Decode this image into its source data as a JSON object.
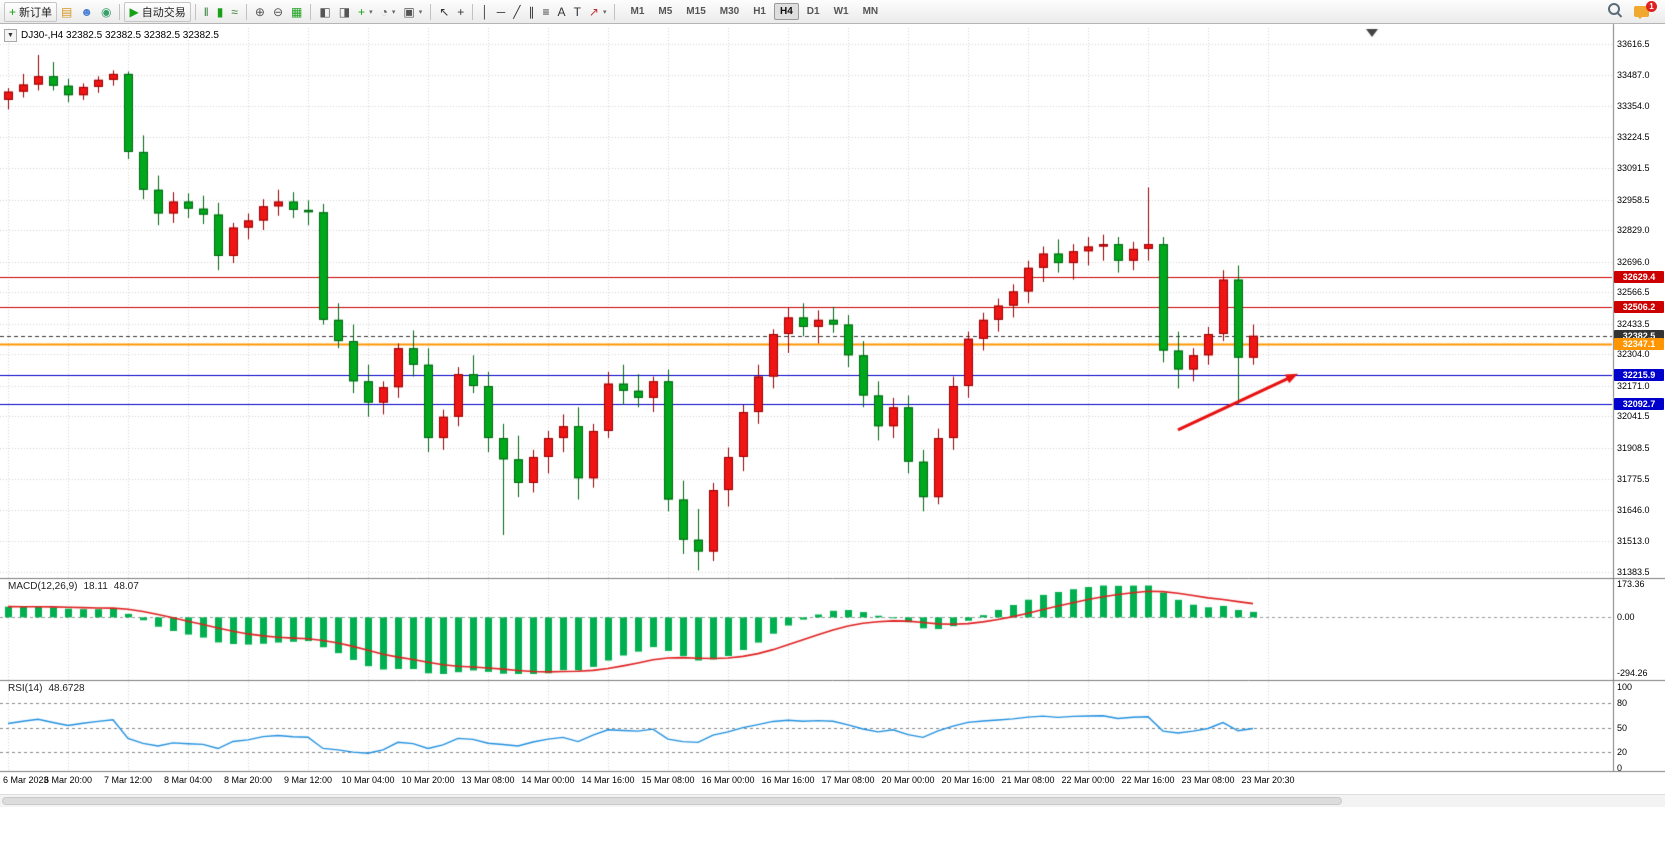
{
  "ui": {
    "menu_toggle_glyph": "▼"
  },
  "toolbar": {
    "notification_count": "1",
    "timeframes": [
      "M1",
      "M5",
      "M15",
      "M30",
      "H1",
      "H4",
      "D1",
      "W1",
      "MN"
    ],
    "active_timeframe": "H4",
    "items": [
      {
        "kind": "button",
        "name": "new-order-button",
        "label": "新订单",
        "icon": "new-order-icon",
        "glyph": "+",
        "color": "#18a018"
      },
      {
        "kind": "icon",
        "name": "open-chart-icon",
        "glyph": "▤",
        "color": "#d4941e"
      },
      {
        "kind": "icon",
        "name": "profile-icon",
        "glyph": "☻",
        "color": "#4a7fd4"
      },
      {
        "kind": "icon",
        "name": "community-icon",
        "glyph": "◉",
        "color": "#3aa06a"
      },
      {
        "kind": "sep"
      },
      {
        "kind": "button",
        "name": "algo-trading-button",
        "label": "自动交易",
        "icon": "algo-trading-icon",
        "glyph": "▶",
        "color": "#18a018"
      },
      {
        "kind": "sep"
      },
      {
        "kind": "icon",
        "name": "bar-chart-type-icon",
        "glyph": "‖",
        "color": "#2f7d2f"
      },
      {
        "kind": "icon",
        "name": "candlestick-type-icon",
        "glyph": "▮",
        "color": "#18a018"
      },
      {
        "kind": "icon",
        "name": "line-chart-type-icon",
        "glyph": "≈",
        "color": "#2f7d2f"
      },
      {
        "kind": "sep"
      },
      {
        "kind": "icon",
        "name": "zoom-in-icon",
        "glyph": "⊕",
        "color": "#555555"
      },
      {
        "kind": "icon",
        "name": "zoom-out-icon",
        "glyph": "⊖",
        "color": "#555555"
      },
      {
        "kind": "icon",
        "name": "tile-windows-icon",
        "glyph": "▦",
        "color": "#18a018"
      },
      {
        "kind": "sep"
      },
      {
        "kind": "icon",
        "name": "window-cascade-icon",
        "glyph": "◧",
        "color": "#555555"
      },
      {
        "kind": "icon",
        "name": "window-tile-icon",
        "glyph": "◨",
        "color": "#555555"
      },
      {
        "kind": "icon",
        "name": "add-indicator-icon",
        "glyph": "+",
        "color": "#18a018",
        "caret": true
      },
      {
        "kind": "icon",
        "name": "clock-icon",
        "glyph": "◔",
        "color": "#555555",
        "caret": true
      },
      {
        "kind": "icon",
        "name": "chart-snapshot-icon",
        "glyph": "▣",
        "color": "#555555",
        "caret": true
      },
      {
        "kind": "sep"
      },
      {
        "kind": "icon",
        "name": "cursor-icon",
        "glyph": "↖",
        "color": "#333333"
      },
      {
        "kind": "icon",
        "name": "crosshair-icon",
        "glyph": "+",
        "color": "#333333"
      },
      {
        "kind": "sep"
      },
      {
        "kind": "icon",
        "name": "vertical-line-icon",
        "glyph": "│",
        "color": "#333333"
      },
      {
        "kind": "icon",
        "name": "horizontal-line-icon",
        "glyph": "─",
        "color": "#333333"
      },
      {
        "kind": "icon",
        "name": "trendline-icon",
        "glyph": "╱",
        "color": "#333333"
      },
      {
        "kind": "icon",
        "name": "equidistant-channel-icon",
        "glyph": "∥",
        "color": "#333333"
      },
      {
        "kind": "icon",
        "name": "fibonacci-icon",
        "glyph": "≡",
        "color": "#333333"
      },
      {
        "kind": "icon",
        "name": "text-icon",
        "glyph": "A",
        "color": "#333333"
      },
      {
        "kind": "icon",
        "name": "label-icon",
        "glyph": "T",
        "color": "#333333"
      },
      {
        "kind": "icon",
        "name": "arrows-tool-icon",
        "glyph": "↗",
        "color": "#c03030",
        "caret": true
      },
      {
        "kind": "sep"
      }
    ]
  },
  "chart_data": {
    "type": "candlestick",
    "symbol": "DJ30-",
    "timeframe": "H4",
    "title_text": "DJ30-,H4  32382.5 32382.5 32382.5 32382.5",
    "ohlc_current": [
      32382.5,
      32382.5,
      32382.5,
      32382.5
    ],
    "colors": {
      "up": "#f01414",
      "up_dark": "#990000",
      "down": "#00a81c",
      "down_dark": "#006612",
      "grid": "#d6d6d6",
      "macd_hist": "#00b050",
      "macd_signal": "#e02020",
      "rsi_line": "#2090e0"
    },
    "y_ticks": [
      "33616.5",
      "33487.0",
      "33354.0",
      "33224.5",
      "33091.5",
      "32958.5",
      "32829.0",
      "32696.0",
      "32566.5",
      "32433.5",
      "32304.0",
      "32171.0",
      "32041.5",
      "31908.5",
      "31775.5",
      "31646.0",
      "31513.0",
      "31383.5"
    ],
    "x_labels": [
      "6 Mar 2023",
      "6 Mar 20:00",
      "7 Mar 12:00",
      "8 Mar 04:00",
      "8 Mar 20:00",
      "9 Mar 12:00",
      "10 Mar 04:00",
      "10 Mar 20:00",
      "13 Mar 08:00",
      "14 Mar 00:00",
      "14 Mar 16:00",
      "15 Mar 08:00",
      "16 Mar 00:00",
      "16 Mar 16:00",
      "17 Mar 08:00",
      "20 Mar 00:00",
      "20 Mar 16:00",
      "21 Mar 08:00",
      "22 Mar 00:00",
      "22 Mar 16:00",
      "23 Mar 08:00",
      "23 Mar 20:30"
    ],
    "bars_per_label": 4,
    "shift_marker_bar": 87,
    "levels": [
      {
        "price": 32629.4,
        "label": "32629.4",
        "color": "#cc0000",
        "type": "resistance-line"
      },
      {
        "price": 32506.2,
        "label": "32506.2",
        "color": "#cc0000",
        "type": "resistance-line"
      },
      {
        "price": 32382.5,
        "label": "32382.5",
        "color": "#333333",
        "type": "current-price",
        "dashed": true
      },
      {
        "price": 32347.1,
        "label": "32347.1",
        "color": "#ff9500",
        "type": "pivot-line",
        "width": 2
      },
      {
        "price": 32215.9,
        "label": "32215.9",
        "color": "#0000cc",
        "type": "support-line"
      },
      {
        "price": 32092.7,
        "label": "32092.7",
        "color": "#0000cc",
        "type": "support-line"
      }
    ],
    "annotations": [
      {
        "type": "arrow",
        "color": "#e81010",
        "from": {
          "bar": 78,
          "price": 31985
        },
        "to": {
          "bar": 86,
          "price": 32222
        }
      }
    ],
    "indicators": {
      "macd": {
        "label": "MACD(12,26,9)",
        "value_main": "18.11",
        "value_signal": "48.07",
        "params": [
          12,
          26,
          9
        ],
        "scale_max": 173.36,
        "scale_min": -294.26,
        "scale_labels": [
          "173.36",
          "0.00",
          "-294.26"
        ]
      },
      "rsi": {
        "label": "RSI(14)",
        "value": "48.6728",
        "period": 14,
        "levels": [
          80,
          50,
          20
        ],
        "scale_labels": [
          "100",
          "80",
          "50",
          "20",
          "0"
        ]
      }
    },
    "candles": [
      [
        33380,
        33430,
        33340,
        33415
      ],
      [
        33415,
        33490,
        33390,
        33445
      ],
      [
        33445,
        33570,
        33420,
        33480
      ],
      [
        33480,
        33540,
        33420,
        33440
      ],
      [
        33440,
        33470,
        33370,
        33400
      ],
      [
        33400,
        33450,
        33380,
        33435
      ],
      [
        33435,
        33480,
        33410,
        33465
      ],
      [
        33465,
        33505,
        33440,
        33490
      ],
      [
        33490,
        33500,
        33130,
        33160
      ],
      [
        33160,
        33230,
        32960,
        33000
      ],
      [
        33000,
        33060,
        32850,
        32900
      ],
      [
        32900,
        32990,
        32860,
        32950
      ],
      [
        32950,
        32985,
        32880,
        32920
      ],
      [
        32920,
        32975,
        32855,
        32895
      ],
      [
        32895,
        32945,
        32660,
        32720
      ],
      [
        32720,
        32860,
        32690,
        32840
      ],
      [
        32840,
        32900,
        32790,
        32870
      ],
      [
        32870,
        32960,
        32830,
        32930
      ],
      [
        32930,
        33000,
        32890,
        32950
      ],
      [
        32950,
        32990,
        32880,
        32915
      ],
      [
        32915,
        32955,
        32850,
        32905
      ],
      [
        32905,
        32940,
        32430,
        32450
      ],
      [
        32450,
        32520,
        32330,
        32360
      ],
      [
        32360,
        32430,
        32140,
        32190
      ],
      [
        32190,
        32260,
        32040,
        32100
      ],
      [
        32100,
        32190,
        32050,
        32165
      ],
      [
        32165,
        32350,
        32120,
        32330
      ],
      [
        32330,
        32405,
        32210,
        32260
      ],
      [
        32260,
        32330,
        31890,
        31950
      ],
      [
        31950,
        32070,
        31900,
        32040
      ],
      [
        32040,
        32250,
        32000,
        32220
      ],
      [
        32220,
        32300,
        32140,
        32170
      ],
      [
        32170,
        32230,
        31890,
        31950
      ],
      [
        31950,
        32010,
        31540,
        31860
      ],
      [
        31860,
        31960,
        31700,
        31760
      ],
      [
        31760,
        31900,
        31720,
        31870
      ],
      [
        31870,
        31980,
        31800,
        31950
      ],
      [
        31950,
        32050,
        31890,
        32000
      ],
      [
        32000,
        32080,
        31690,
        31780
      ],
      [
        31780,
        32010,
        31740,
        31980
      ],
      [
        31980,
        32230,
        31950,
        32180
      ],
      [
        32180,
        32260,
        32090,
        32150
      ],
      [
        32150,
        32220,
        32080,
        32120
      ],
      [
        32120,
        32210,
        32060,
        32190
      ],
      [
        32190,
        32240,
        31640,
        31690
      ],
      [
        31690,
        31770,
        31460,
        31520
      ],
      [
        31520,
        31650,
        31390,
        31470
      ],
      [
        31470,
        31760,
        31430,
        31730
      ],
      [
        31730,
        31910,
        31660,
        31870
      ],
      [
        31870,
        32090,
        31810,
        32060
      ],
      [
        32060,
        32260,
        32010,
        32210
      ],
      [
        32210,
        32410,
        32160,
        32390
      ],
      [
        32390,
        32500,
        32310,
        32460
      ],
      [
        32460,
        32520,
        32380,
        32420
      ],
      [
        32420,
        32490,
        32350,
        32450
      ],
      [
        32450,
        32505,
        32395,
        32430
      ],
      [
        32430,
        32470,
        32250,
        32300
      ],
      [
        32300,
        32360,
        32080,
        32130
      ],
      [
        32130,
        32190,
        31940,
        32000
      ],
      [
        32000,
        32120,
        31950,
        32080
      ],
      [
        32080,
        32130,
        31800,
        31850
      ],
      [
        31850,
        31900,
        31640,
        31700
      ],
      [
        31700,
        31990,
        31670,
        31950
      ],
      [
        31950,
        32210,
        31900,
        32170
      ],
      [
        32170,
        32400,
        32120,
        32370
      ],
      [
        32370,
        32480,
        32320,
        32450
      ],
      [
        32450,
        32540,
        32400,
        32510
      ],
      [
        32510,
        32600,
        32460,
        32570
      ],
      [
        32570,
        32700,
        32520,
        32670
      ],
      [
        32670,
        32760,
        32610,
        32730
      ],
      [
        32730,
        32790,
        32650,
        32690
      ],
      [
        32690,
        32770,
        32620,
        32740
      ],
      [
        32740,
        32800,
        32680,
        32760
      ],
      [
        32760,
        32810,
        32700,
        32770
      ],
      [
        32770,
        32800,
        32650,
        32700
      ],
      [
        32700,
        32780,
        32660,
        32750
      ],
      [
        32750,
        33010,
        32700,
        32770
      ],
      [
        32770,
        32800,
        32270,
        32320
      ],
      [
        32320,
        32400,
        32160,
        32240
      ],
      [
        32240,
        32330,
        32190,
        32300
      ],
      [
        32300,
        32420,
        32260,
        32390
      ],
      [
        32390,
        32660,
        32360,
        32620
      ],
      [
        32620,
        32680,
        32090,
        32290
      ],
      [
        32290,
        32430,
        32260,
        32382.5
      ]
    ]
  }
}
